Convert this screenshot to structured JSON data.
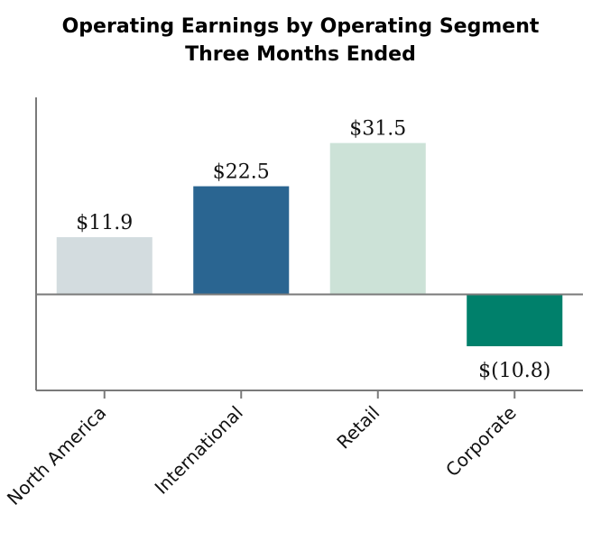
{
  "chart_data": {
    "type": "bar",
    "title": "Operating Earnings by Operating Segment",
    "subtitle": "Three Months Ended",
    "categories": [
      "North America",
      "International",
      "Retail",
      "Corporate"
    ],
    "values": [
      11.9,
      22.5,
      31.5,
      -10.8
    ],
    "data_labels": [
      "$11.9",
      "$22.5",
      "$31.5",
      "$(10.8)"
    ],
    "colors": [
      "#d3dcdf",
      "#2a6591",
      "#cce2d7",
      "#00806b"
    ],
    "xlabel": "",
    "ylabel": "",
    "ylim": [
      -20,
      41
    ],
    "grid": false
  }
}
